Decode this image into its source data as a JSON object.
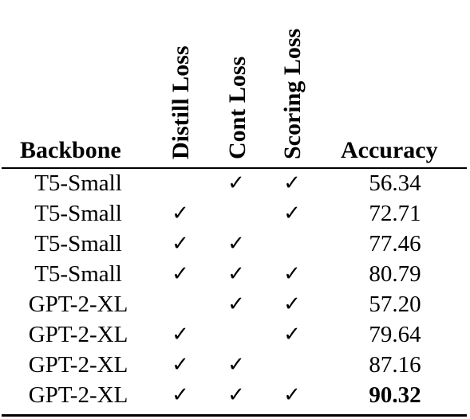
{
  "table": {
    "headers": {
      "backbone": "Backbone",
      "distill_loss": "Distill Loss",
      "cont_loss": "Cont Loss",
      "scoring_loss": "Scoring Loss",
      "accuracy": "Accuracy"
    },
    "check_mark": "✓",
    "rows": [
      {
        "backbone": "T5-Small",
        "distill": "",
        "cont": "✓",
        "scoring": "✓",
        "accuracy": "56.34",
        "bold": false
      },
      {
        "backbone": "T5-Small",
        "distill": "✓",
        "cont": "",
        "scoring": "✓",
        "accuracy": "72.71",
        "bold": false
      },
      {
        "backbone": "T5-Small",
        "distill": "✓",
        "cont": "✓",
        "scoring": "",
        "accuracy": "77.46",
        "bold": false
      },
      {
        "backbone": "T5-Small",
        "distill": "✓",
        "cont": "✓",
        "scoring": "✓",
        "accuracy": "80.79",
        "bold": false
      },
      {
        "backbone": "GPT-2-XL",
        "distill": "",
        "cont": "✓",
        "scoring": "✓",
        "accuracy": "57.20",
        "bold": false
      },
      {
        "backbone": "GPT-2-XL",
        "distill": "✓",
        "cont": "",
        "scoring": "✓",
        "accuracy": "79.64",
        "bold": false
      },
      {
        "backbone": "GPT-2-XL",
        "distill": "✓",
        "cont": "✓",
        "scoring": "",
        "accuracy": "87.16",
        "bold": false
      },
      {
        "backbone": "GPT-2-XL",
        "distill": "✓",
        "cont": "✓",
        "scoring": "✓",
        "accuracy": "90.32",
        "bold": true
      }
    ]
  }
}
